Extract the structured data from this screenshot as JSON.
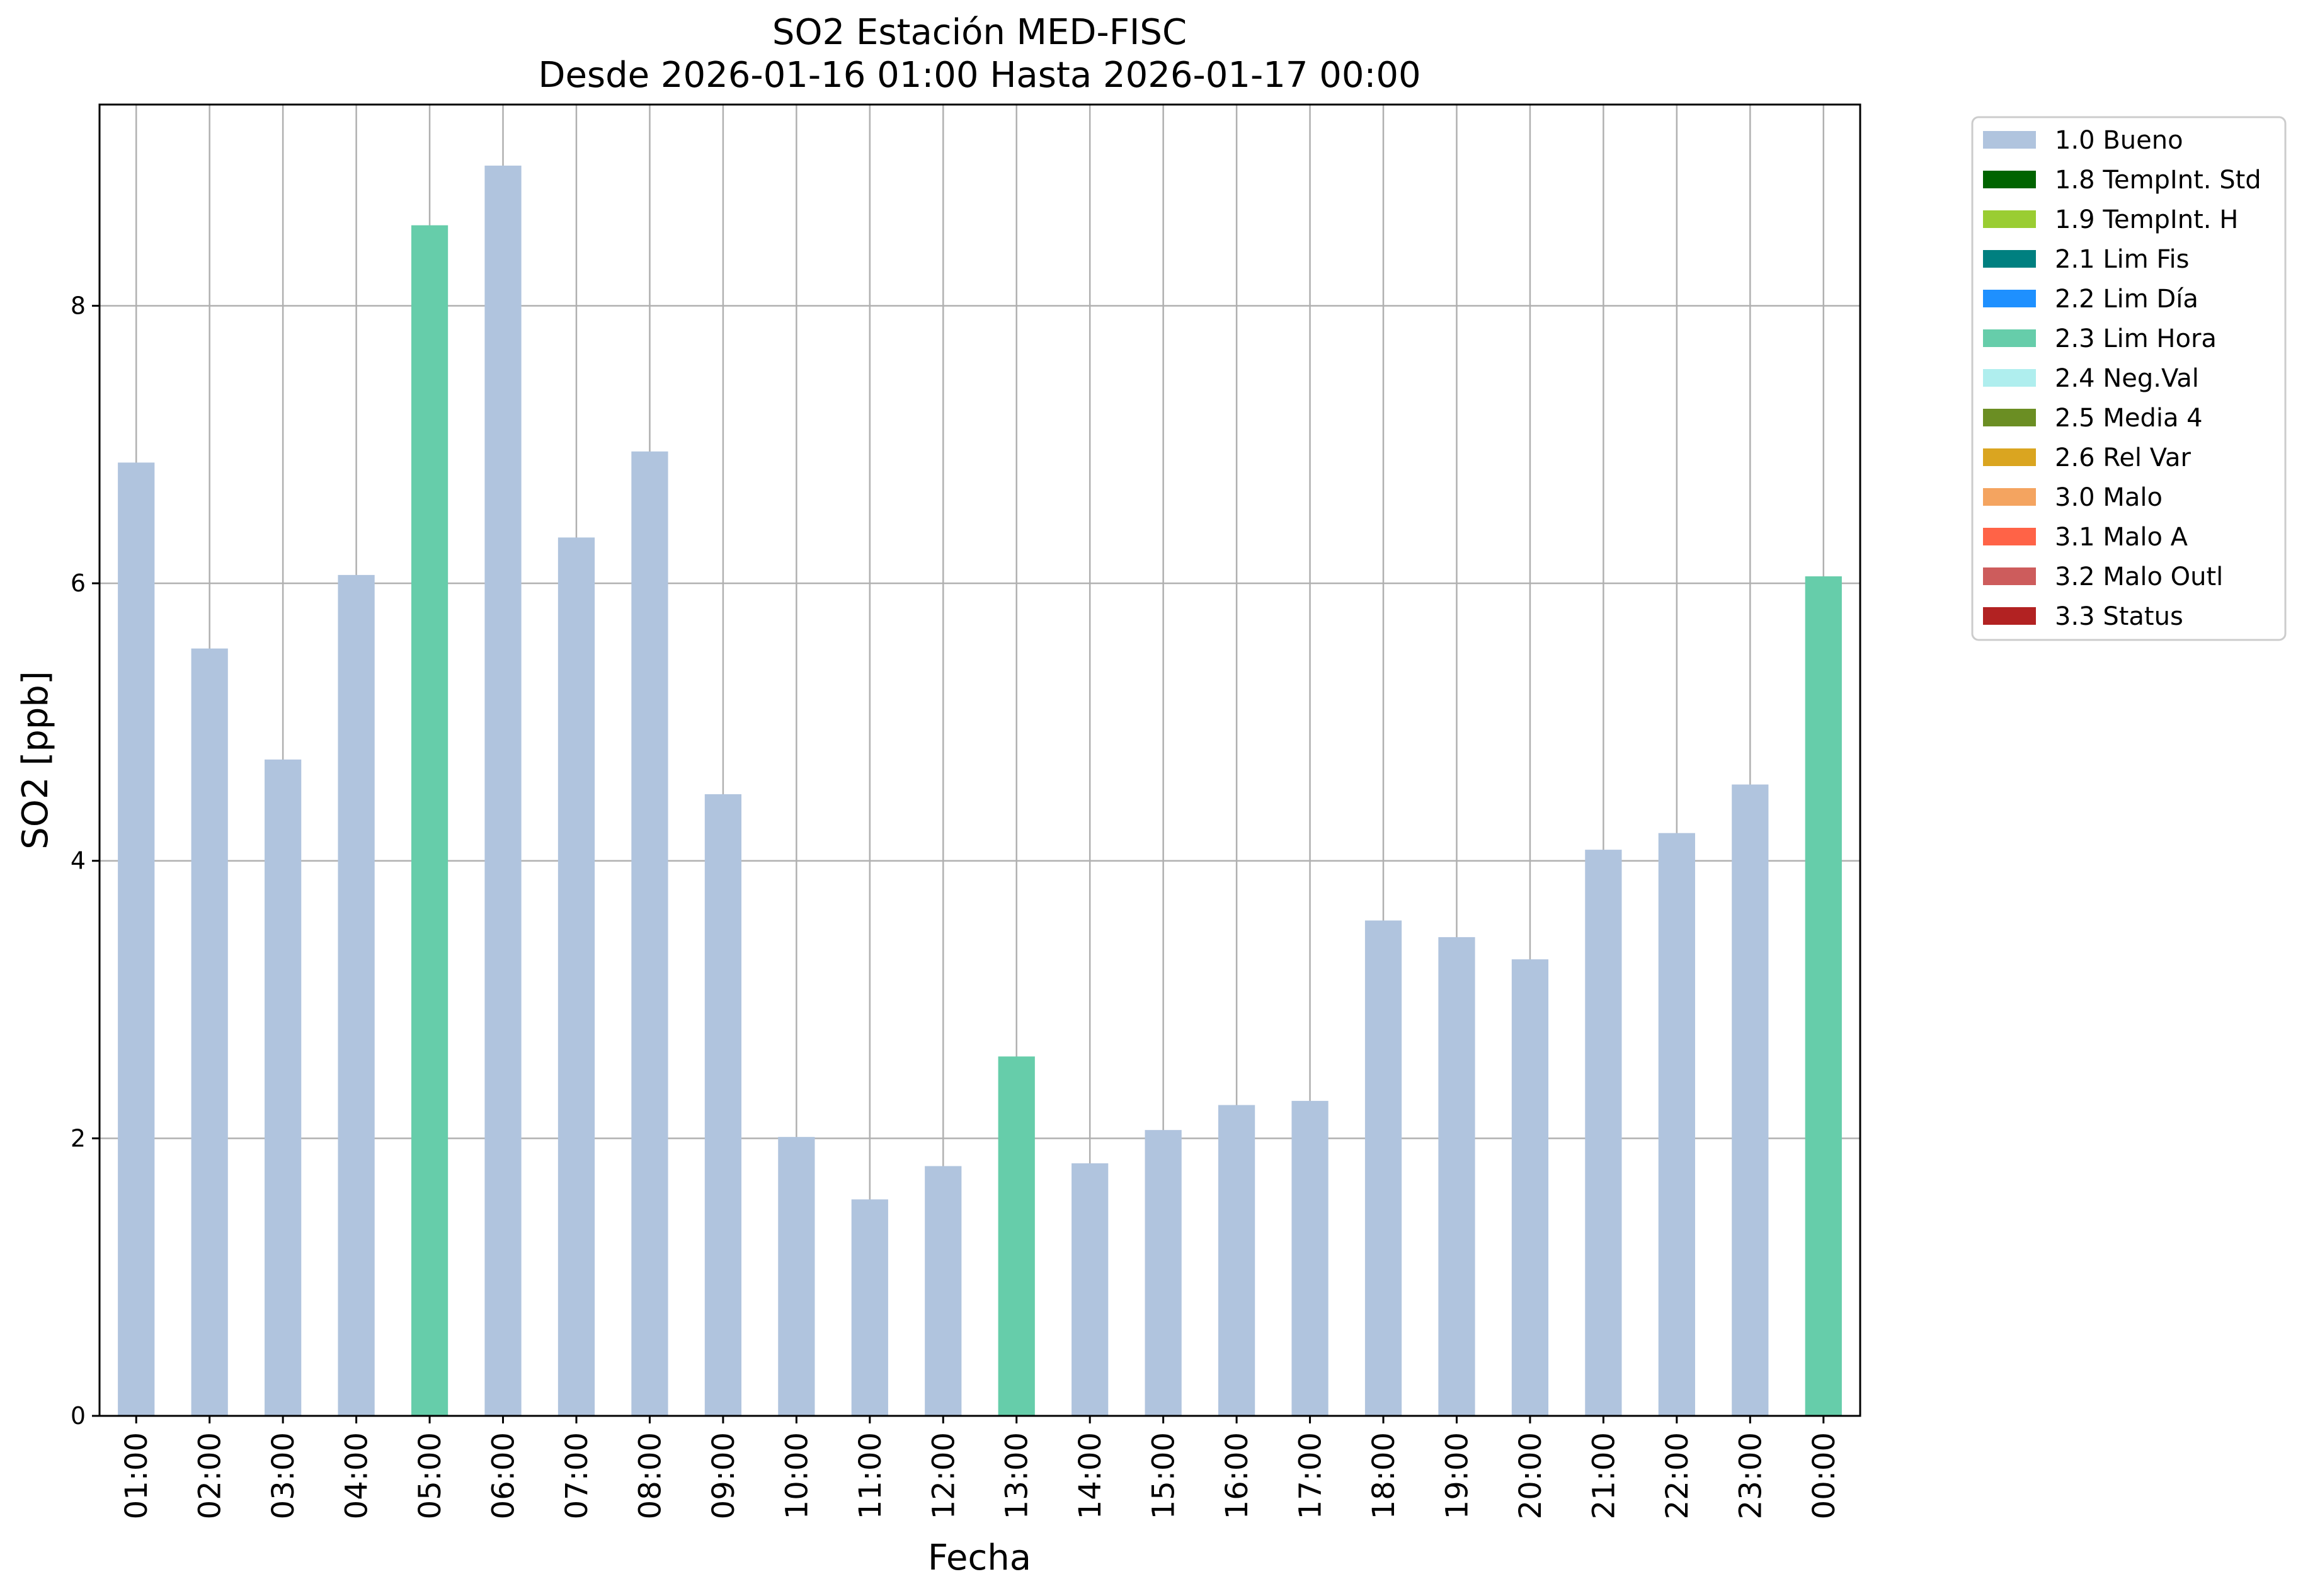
{
  "chart_data": {
    "type": "bar",
    "title": "SO2 Estación MED-FISC",
    "subtitle": "Desde 2026-01-16 01:00 Hasta 2026-01-17 00:00",
    "xlabel": "Fecha",
    "ylabel": "SO2 [ppb]",
    "ylim": [
      0,
      9.45
    ],
    "yticks": [
      0,
      2,
      4,
      6,
      8
    ],
    "grid": true,
    "legend_position": "outside-top-right",
    "categories": [
      "01:00",
      "02:00",
      "03:00",
      "04:00",
      "05:00",
      "06:00",
      "07:00",
      "08:00",
      "09:00",
      "10:00",
      "11:00",
      "12:00",
      "13:00",
      "14:00",
      "15:00",
      "16:00",
      "17:00",
      "18:00",
      "19:00",
      "20:00",
      "21:00",
      "22:00",
      "23:00",
      "00:00"
    ],
    "values": [
      6.87,
      5.53,
      4.73,
      6.06,
      8.58,
      9.01,
      6.33,
      6.95,
      4.48,
      2.01,
      1.56,
      1.8,
      2.59,
      1.82,
      2.06,
      2.24,
      2.27,
      3.57,
      3.45,
      3.29,
      4.08,
      4.2,
      4.55,
      6.05
    ],
    "flags": [
      "1.0",
      "1.0",
      "1.0",
      "1.0",
      "2.3",
      "1.0",
      "1.0",
      "1.0",
      "1.0",
      "1.0",
      "1.0",
      "1.0",
      "2.3",
      "1.0",
      "1.0",
      "1.0",
      "1.0",
      "1.0",
      "1.0",
      "1.0",
      "1.0",
      "1.0",
      "1.0",
      "2.3"
    ],
    "legend": [
      {
        "code": "1.0",
        "label": "1.0 Bueno",
        "color": "#b0c4de"
      },
      {
        "code": "1.8",
        "label": "1.8 TempInt. Std",
        "color": "#006400"
      },
      {
        "code": "1.9",
        "label": "1.9 TempInt. H",
        "color": "#9acd32"
      },
      {
        "code": "2.1",
        "label": "2.1 Lim Fis",
        "color": "#008080"
      },
      {
        "code": "2.2",
        "label": "2.2 Lim Día",
        "color": "#1e90ff"
      },
      {
        "code": "2.3",
        "label": "2.3 Lim Hora",
        "color": "#66cdaa"
      },
      {
        "code": "2.4",
        "label": "2.4 Neg.Val",
        "color": "#afeeee"
      },
      {
        "code": "2.5",
        "label": "2.5 Media 4",
        "color": "#6b8e23"
      },
      {
        "code": "2.6",
        "label": "2.6 Rel Var",
        "color": "#daa520"
      },
      {
        "code": "3.0",
        "label": "3.0 Malo",
        "color": "#f4a460"
      },
      {
        "code": "3.1",
        "label": "3.1 Malo A",
        "color": "#ff6347"
      },
      {
        "code": "3.2",
        "label": "3.2 Malo Outl",
        "color": "#cd5c5c"
      },
      {
        "code": "3.3",
        "label": "3.3 Status",
        "color": "#b22222"
      }
    ]
  }
}
